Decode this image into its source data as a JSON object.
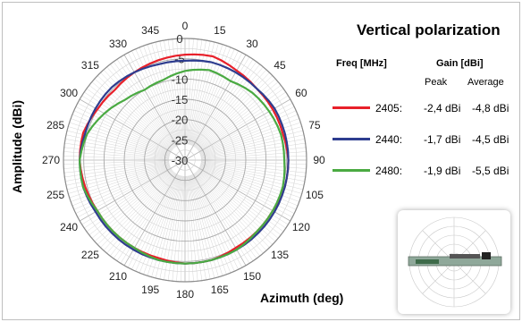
{
  "colors": {
    "red": "#e8202a",
    "blue": "#2e3d8f",
    "green": "#4aaa42"
  },
  "legend": {
    "freq_header": "Freq [MHz]",
    "gain_header": "Gain [dBi]",
    "peak_header": "Peak",
    "avg_header": "Average"
  },
  "inset": {
    "icon": "antenna-board-photo"
  },
  "chart_data": {
    "type": "polar-line",
    "title": "Vertical polarization",
    "xlabel": "Azimuth (deg)",
    "ylabel": "Amplitude (dBi)",
    "radial_range": [
      -30,
      0
    ],
    "radial_ticks": [
      0,
      -5,
      -10,
      -15,
      -20,
      -25,
      -30
    ],
    "angle_ticks": [
      "0",
      "15",
      "30",
      "45",
      "60",
      "75",
      "90",
      "105",
      "120",
      "135",
      "150",
      "165",
      "180",
      "195",
      "210",
      "225",
      "240",
      "255",
      "270",
      "285",
      "300",
      "315",
      "330",
      "345"
    ],
    "angles": [
      0,
      15,
      30,
      45,
      60,
      75,
      90,
      105,
      120,
      135,
      150,
      165,
      180,
      195,
      210,
      225,
      240,
      255,
      270,
      285,
      300,
      315,
      330,
      345
    ],
    "series": [
      {
        "name": "2405:",
        "color": "red",
        "peak": "-2,4 dBi",
        "average": "-4,8 dBi",
        "values": [
          -4,
          -3.5,
          -4.5,
          -5,
          -5,
          -5,
          -4.5,
          -4.5,
          -5,
          -5,
          -5,
          -4.5,
          -4.5,
          -5,
          -5,
          -5,
          -5,
          -4.5,
          -4,
          -4,
          -5,
          -5.5,
          -5,
          -4.5
        ]
      },
      {
        "name": "2440:",
        "color": "blue",
        "peak": "-1,7 dBi",
        "average": "-4,5 dBi",
        "values": [
          -5.5,
          -5,
          -5,
          -5,
          -4.5,
          -4.5,
          -4.5,
          -4.5,
          -4.5,
          -4.5,
          -4.5,
          -4.5,
          -4.5,
          -4.5,
          -4.5,
          -4.5,
          -4.5,
          -4,
          -4,
          -4.5,
          -4.5,
          -4.5,
          -5,
          -5.5
        ]
      },
      {
        "name": "2480:",
        "color": "green",
        "peak": "-1,9 dBi",
        "average": "-5,5 dBi",
        "values": [
          -8,
          -7,
          -7.5,
          -6.5,
          -6,
          -5.5,
          -5.5,
          -5,
          -5,
          -5,
          -4.5,
          -4.5,
          -4.5,
          -4.5,
          -5,
          -5,
          -5,
          -4,
          -4,
          -5,
          -7,
          -9,
          -10,
          -9.5
        ]
      }
    ]
  }
}
